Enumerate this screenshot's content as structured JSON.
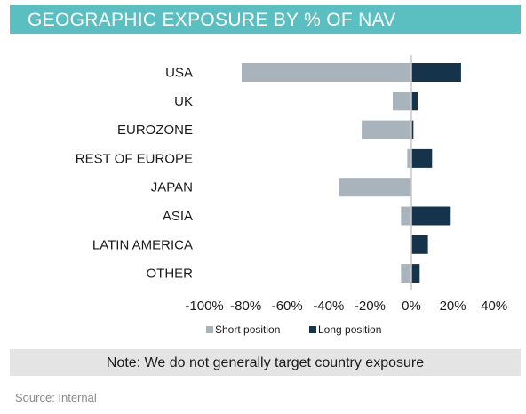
{
  "header": {
    "title": "GEOGRAPHIC EXPOSURE BY % OF NAV"
  },
  "note": "Note: We do not generally target country exposure",
  "source": "Source: Internal",
  "colors": {
    "header": "#5bbfc2",
    "short": "#a9b3bc",
    "long": "#15344c",
    "note_bg": "#e4e4e4"
  },
  "chart_data": {
    "type": "bar",
    "orientation": "horizontal",
    "title": "GEOGRAPHIC EXPOSURE BY % OF NAV",
    "categories": [
      "USA",
      "UK",
      "EUROZONE",
      "REST OF EUROPE",
      "JAPAN",
      "ASIA",
      "LATIN AMERICA",
      "OTHER"
    ],
    "series": [
      {
        "name": "Short position",
        "values": [
          -82,
          -9,
          -24,
          -2,
          -35,
          -5,
          0,
          -5
        ]
      },
      {
        "name": "Long position",
        "values": [
          24,
          3,
          1,
          10,
          0,
          19,
          8,
          4
        ]
      }
    ],
    "xlim": [
      -100,
      40
    ],
    "xticks": [
      -100,
      -80,
      -60,
      -40,
      -20,
      0,
      20,
      40
    ],
    "xtick_labels": [
      "-100%",
      "-80%",
      "-60%",
      "-40%",
      "-20%",
      "0%",
      "20%",
      "40%"
    ],
    "xlabel": "",
    "ylabel": "",
    "grid": false,
    "legend_position": "bottom"
  }
}
